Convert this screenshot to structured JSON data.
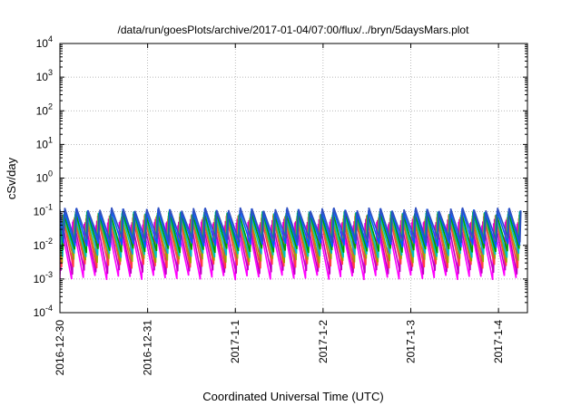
{
  "chart_data": {
    "type": "line",
    "title": "/data/run/goesPlots/archive/2017-01-04/07:00/flux/../bryn/5daysMars.plot",
    "xlabel": "Coordinated Universal Time (UTC)",
    "ylabel": "cSv/day",
    "yscale": "log",
    "ylim": [
      0.0001,
      10000
    ],
    "xlim": [
      0,
      5.33
    ],
    "y_ticks": [
      {
        "value": 0.0001,
        "base": "10",
        "exp": "-4"
      },
      {
        "value": 0.001,
        "base": "10",
        "exp": "-3"
      },
      {
        "value": 0.01,
        "base": "10",
        "exp": "-2"
      },
      {
        "value": 0.1,
        "base": "10",
        "exp": "-1"
      },
      {
        "value": 1,
        "base": "10",
        "exp": "0"
      },
      {
        "value": 10,
        "base": "10",
        "exp": "1"
      },
      {
        "value": 100,
        "base": "10",
        "exp": "2"
      },
      {
        "value": 1000,
        "base": "10",
        "exp": "3"
      },
      {
        "value": 10000,
        "base": "10",
        "exp": "4"
      }
    ],
    "x_ticks": [
      {
        "value": 0,
        "label": "2016-12-30"
      },
      {
        "value": 1,
        "label": "2016-12-31"
      },
      {
        "value": 2,
        "label": "2017-1-1"
      },
      {
        "value": 3,
        "label": "2017-1-2"
      },
      {
        "value": 4,
        "label": "2017-1-3"
      },
      {
        "value": 5,
        "label": "2017-1-4"
      }
    ],
    "grid": true,
    "legend": "none",
    "sawtooth": {
      "cycles_per_day": 7.5,
      "range_note": "series oscillate roughly between 0.001 and 0.15"
    },
    "series": [
      {
        "color": "#ff00ff",
        "peak": 0.045,
        "trough": 0.0011,
        "phase": 0.0
      },
      {
        "color": "#c000c0",
        "peak": 0.055,
        "trough": 0.0016,
        "phase": 0.01
      },
      {
        "color": "#ff4040",
        "peak": 0.07,
        "trough": 0.0024,
        "phase": 0.02
      },
      {
        "color": "#a0a000",
        "peak": 0.08,
        "trough": 0.0035,
        "phase": 0.025
      },
      {
        "color": "#00c0c0",
        "peak": 0.09,
        "trough": 0.005,
        "phase": 0.03
      },
      {
        "color": "#00a000",
        "peak": 0.095,
        "trough": 0.007,
        "phase": 0.035
      },
      {
        "color": "#0060ff",
        "peak": 0.11,
        "trough": 0.01,
        "phase": 0.04
      },
      {
        "color": "#3050c0",
        "peak": 0.12,
        "trough": 0.014,
        "phase": 0.045
      }
    ]
  }
}
